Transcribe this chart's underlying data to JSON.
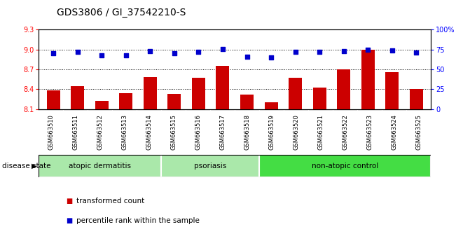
{
  "title": "GDS3806 / GI_37542210-S",
  "samples": [
    "GSM663510",
    "GSM663511",
    "GSM663512",
    "GSM663513",
    "GSM663514",
    "GSM663515",
    "GSM663516",
    "GSM663517",
    "GSM663518",
    "GSM663519",
    "GSM663520",
    "GSM663521",
    "GSM663522",
    "GSM663523",
    "GSM663524",
    "GSM663525"
  ],
  "bar_values": [
    8.38,
    8.45,
    8.22,
    8.34,
    8.58,
    8.33,
    8.57,
    8.75,
    8.32,
    8.2,
    8.57,
    8.43,
    8.7,
    9.0,
    8.66,
    8.4
  ],
  "dot_values": [
    70,
    72,
    68,
    68,
    73,
    70,
    72,
    76,
    66,
    65,
    72,
    72,
    73,
    75,
    74,
    71
  ],
  "ylim_left": [
    8.1,
    9.3
  ],
  "ylim_right": [
    0,
    100
  ],
  "yticks_left": [
    8.1,
    8.4,
    8.7,
    9.0,
    9.3
  ],
  "yticks_right": [
    0,
    25,
    50,
    75,
    100
  ],
  "ytick_labels_right": [
    "0",
    "25",
    "50",
    "75",
    "100%"
  ],
  "bar_color": "#cc0000",
  "dot_color": "#0000cc",
  "group_defs": [
    {
      "start": 0,
      "end": 5,
      "label": "atopic dermatitis",
      "color": "#aae8aa"
    },
    {
      "start": 5,
      "end": 9,
      "label": "psoriasis",
      "color": "#aae8aa"
    },
    {
      "start": 9,
      "end": 16,
      "label": "non-atopic control",
      "color": "#44dd44"
    }
  ],
  "disease_state_label": "disease state",
  "legend_bar_label": "transformed count",
  "legend_dot_label": "percentile rank within the sample",
  "background_color": "#ffffff",
  "tick_area_color": "#c8c8c8",
  "title_fontsize": 10,
  "tick_fontsize": 7
}
